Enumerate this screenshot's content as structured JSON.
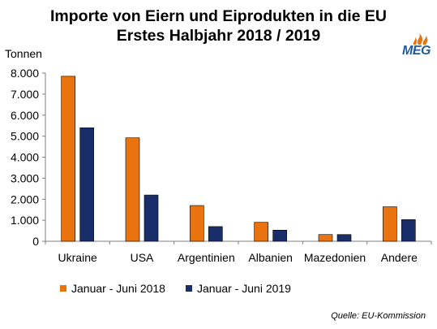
{
  "title": {
    "line1": "Importe von Eiern und Eiprodukten in die EU",
    "line2": "Erstes Halbjahr 2018 / 2019"
  },
  "logo": {
    "text": "MEG"
  },
  "source": "Quelle: EU-Kommission",
  "colors": {
    "series2018": "#e8730f",
    "series2019": "#1a2d6b",
    "axis": "#7f7f7f"
  },
  "chart_data": {
    "type": "bar",
    "ylabel": "Tonnen",
    "ylim": [
      0,
      8000
    ],
    "yticks": [
      0,
      1000,
      2000,
      3000,
      4000,
      5000,
      6000,
      7000,
      8000
    ],
    "ytick_labels": [
      "0",
      "1.000",
      "2.000",
      "3.000",
      "4.000",
      "5.000",
      "6.000",
      "7.000",
      "8.000"
    ],
    "categories": [
      "Ukraine",
      "USA",
      "Argentinien",
      "Albanien",
      "Mazedonien",
      "Andere"
    ],
    "series": [
      {
        "name": "Januar - Juni 2018",
        "values": [
          7850,
          4920,
          1700,
          900,
          320,
          1640
        ]
      },
      {
        "name": "Januar - Juni 2019",
        "values": [
          5400,
          2200,
          700,
          530,
          320,
          1030
        ]
      }
    ],
    "legend": "bottom",
    "grid": false
  }
}
